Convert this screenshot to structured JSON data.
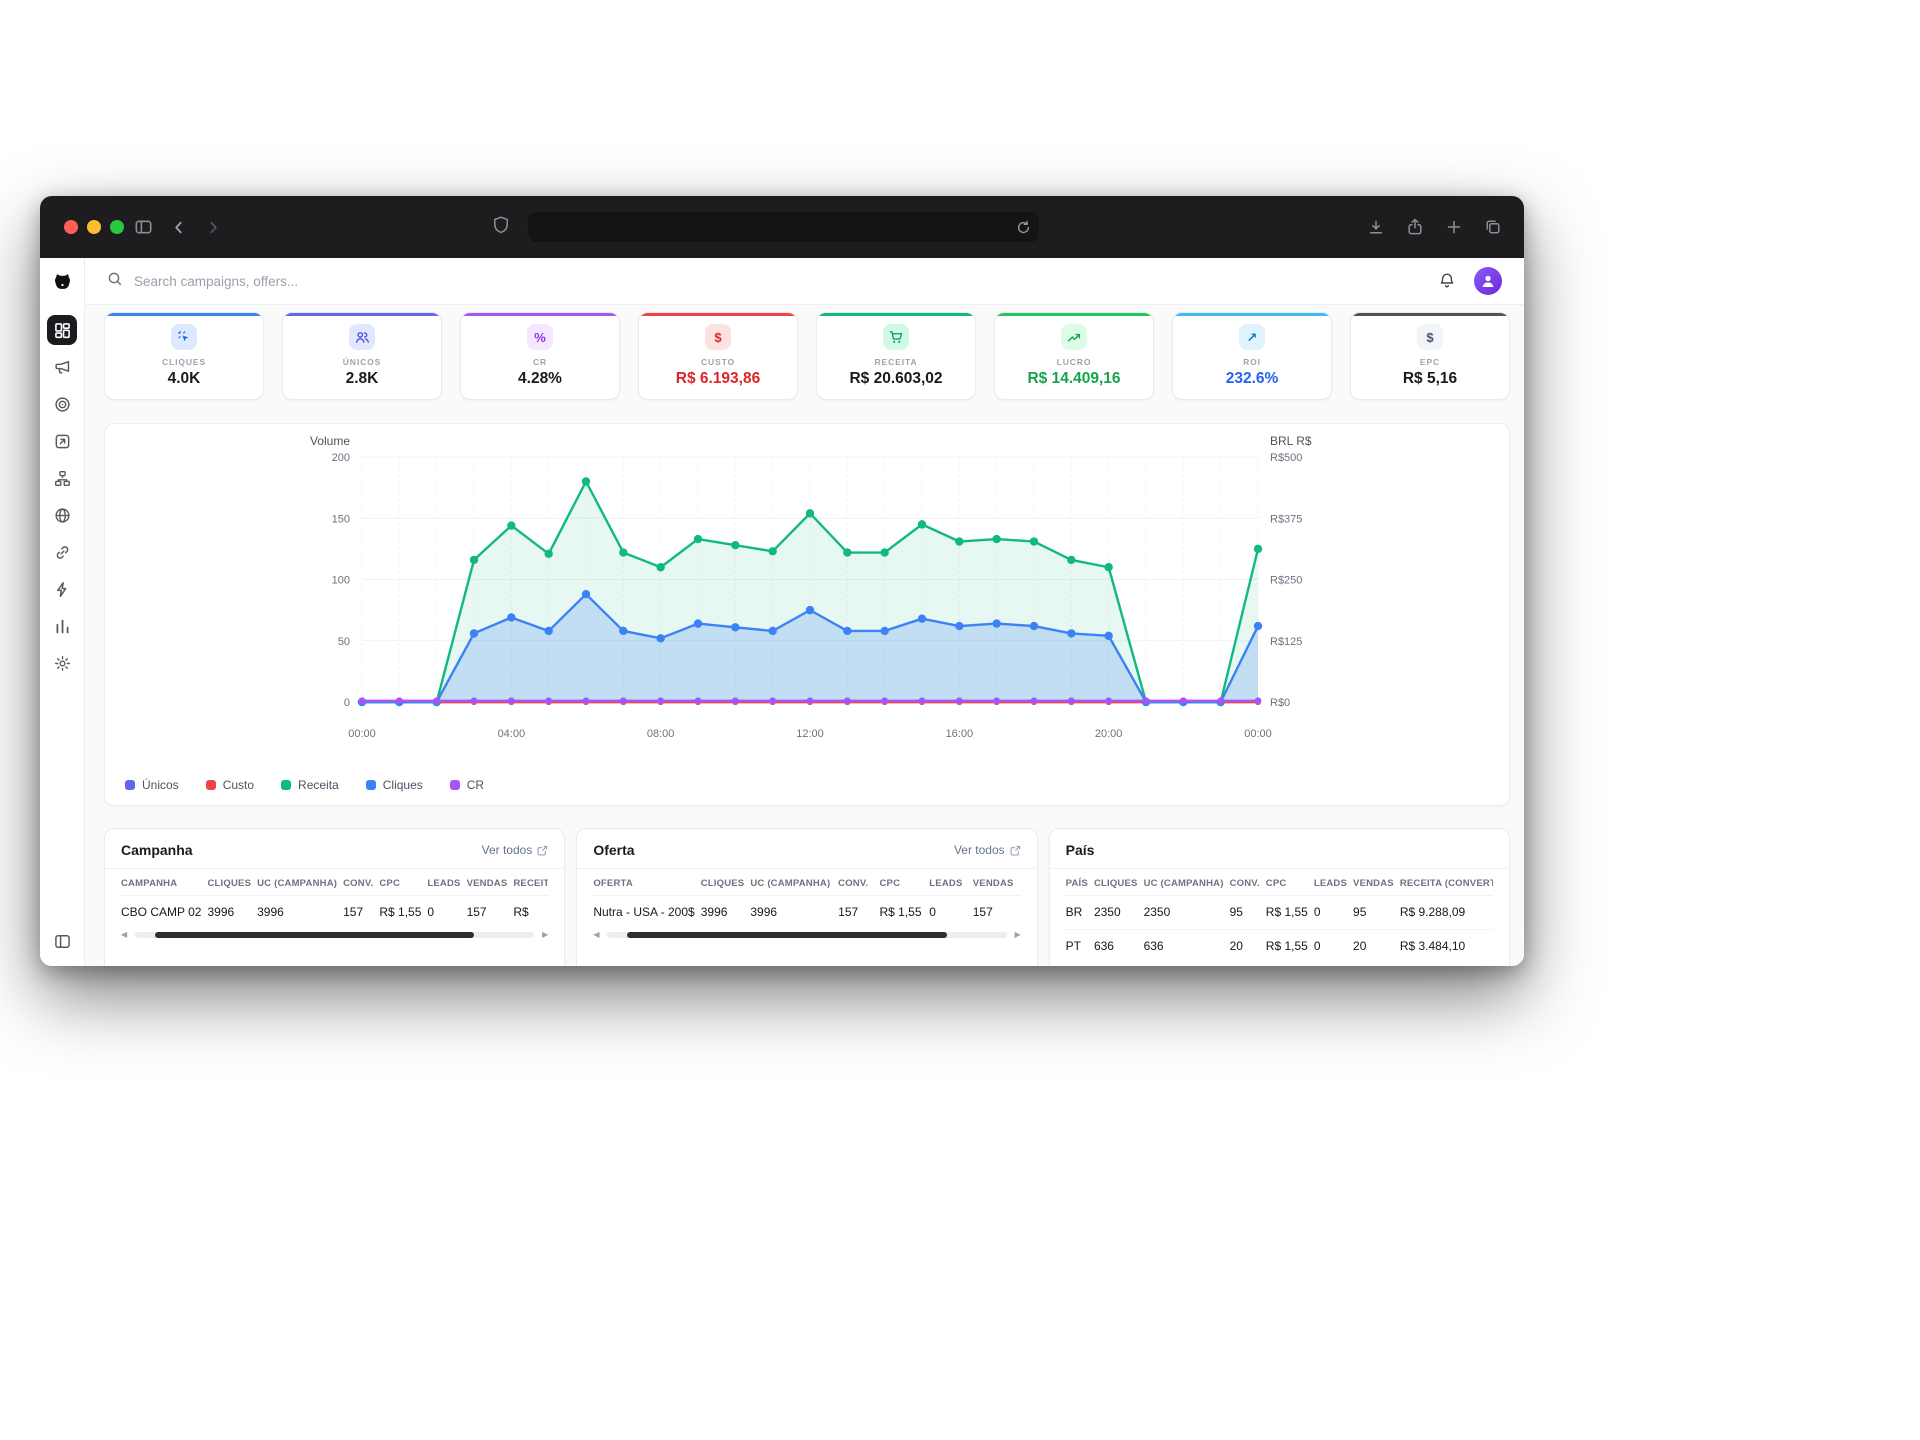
{
  "browser": {
    "url_value": "",
    "left_icons": [
      "sidebar-toggle",
      "back",
      "forward"
    ],
    "url_icons": [
      "privacy-shield",
      "reload"
    ],
    "right_icons": [
      "downloads",
      "share",
      "new-tab",
      "tab-overview"
    ]
  },
  "sidebar": {
    "logo": "dog-logo",
    "items": [
      {
        "icon": "dashboard",
        "active": true
      },
      {
        "icon": "megaphone"
      },
      {
        "icon": "target"
      },
      {
        "icon": "square-arrow"
      },
      {
        "icon": "sitemap"
      },
      {
        "icon": "globe"
      },
      {
        "icon": "link"
      },
      {
        "icon": "zap"
      },
      {
        "icon": "bar-chart"
      },
      {
        "icon": "settings"
      }
    ],
    "footer_icon": "collapse-panel"
  },
  "topbar": {
    "search_placeholder": "Search campaigns, offers...",
    "icons": [
      "search",
      "bell",
      "avatar"
    ]
  },
  "kpis": [
    {
      "label": "CLIQUES",
      "value": "4.0K",
      "icon": "cursor-click",
      "accent": "#3b82f6",
      "chip_bg": "#dbeafe",
      "chip_fg": "#2563eb",
      "value_color": "#191b20"
    },
    {
      "label": "ÚNICOS",
      "value": "2.8K",
      "icon": "users",
      "accent": "#6366f1",
      "chip_bg": "#e0e7ff",
      "chip_fg": "#4f46e5",
      "value_color": "#191b20"
    },
    {
      "label": "CR",
      "value": "4.28%",
      "icon": "percent",
      "accent": "#a855f7",
      "chip_bg": "#f3e8ff",
      "chip_fg": "#9333ea",
      "value_color": "#191b20"
    },
    {
      "label": "CUSTO",
      "value": "R$ 6.193,86",
      "icon": "dollar",
      "accent": "#ef4444",
      "chip_bg": "#fee2e2",
      "chip_fg": "#dc2626",
      "value_color": "#dc2626"
    },
    {
      "label": "RECEITA",
      "value": "R$ 20.603,02",
      "icon": "cart",
      "accent": "#10b981",
      "chip_bg": "#d1fae5",
      "chip_fg": "#059669",
      "value_color": "#191b20"
    },
    {
      "label": "LUCRO",
      "value": "R$ 14.409,16",
      "icon": "trend-up",
      "accent": "#22c55e",
      "chip_bg": "#dcfce7",
      "chip_fg": "#16a34a",
      "value_color": "#16a34a"
    },
    {
      "label": "ROI",
      "value": "232.6%",
      "icon": "arrow-up-right",
      "accent": "#38bdf8",
      "chip_bg": "#e0f2fe",
      "chip_fg": "#0284c7",
      "value_color": "#2563eb"
    },
    {
      "label": "EPC",
      "value": "R$ 5,16",
      "icon": "dollar",
      "accent": "#52525b",
      "chip_bg": "#f1f5f9",
      "chip_fg": "#475569",
      "value_color": "#191b20"
    }
  ],
  "chart_data": {
    "type": "area",
    "x": [
      "00:00",
      "01:00",
      "02:00",
      "03:00",
      "04:00",
      "05:00",
      "06:00",
      "07:00",
      "08:00",
      "09:00",
      "10:00",
      "11:00",
      "12:00",
      "13:00",
      "14:00",
      "15:00",
      "16:00",
      "17:00",
      "18:00",
      "19:00",
      "20:00",
      "21:00",
      "22:00",
      "23:00",
      "00:00"
    ],
    "x_ticks": {
      "indices": [
        0,
        4,
        8,
        12,
        16,
        20,
        24
      ],
      "labels": [
        "00:00",
        "04:00",
        "08:00",
        "12:00",
        "16:00",
        "20:00",
        "00:00"
      ]
    },
    "left_axis": {
      "label": "Volume",
      "ticks": [
        0,
        50,
        100,
        150,
        200
      ],
      "min": 0,
      "max": 200
    },
    "right_axis": {
      "label": "BRL R$",
      "tick_labels": [
        "R$0",
        "R$125",
        "R$250",
        "R$375",
        "R$500"
      ]
    },
    "grid": true,
    "legend_position": "bottom-left",
    "series": [
      {
        "name": "Únicos",
        "color": "#6366f1",
        "dot_r": 3,
        "values": [
          0,
          0,
          0,
          0,
          0,
          0,
          0,
          0,
          0,
          0,
          0,
          0,
          0,
          0,
          0,
          0,
          0,
          0,
          0,
          0,
          0,
          0,
          0,
          0,
          0
        ]
      },
      {
        "name": "Custo",
        "color": "#ef4444",
        "dot_r": 3,
        "values": [
          0,
          0,
          0,
          0,
          0,
          0,
          0,
          0,
          0,
          0,
          0,
          0,
          0,
          0,
          0,
          0,
          0,
          0,
          0,
          0,
          0,
          0,
          0,
          0,
          0
        ]
      },
      {
        "name": "Receita",
        "color": "#10b981",
        "fill": "rgba(16,185,129,0.10)",
        "dot_r": 4.2,
        "values": [
          0,
          0,
          0,
          116,
          144,
          121,
          180,
          122,
          110,
          133,
          128,
          123,
          154,
          122,
          122,
          145,
          131,
          133,
          131,
          116,
          110,
          0,
          0,
          0,
          125
        ]
      },
      {
        "name": "Cliques",
        "color": "#3b82f6",
        "fill": "rgba(59,130,246,0.22)",
        "dot_r": 4.2,
        "values": [
          0,
          0,
          0,
          56,
          69,
          58,
          88,
          58,
          52,
          64,
          61,
          58,
          75,
          58,
          58,
          68,
          62,
          64,
          62,
          56,
          54,
          0,
          0,
          0,
          62
        ]
      },
      {
        "name": "CR",
        "color": "#a855f7",
        "dot_r": 3.4,
        "values": [
          1,
          1,
          1,
          1,
          1,
          1,
          1,
          1,
          1,
          1,
          1,
          1,
          1,
          1,
          1,
          1,
          1,
          1,
          1,
          1,
          1,
          1,
          1,
          1,
          1
        ]
      }
    ]
  },
  "tables": [
    {
      "title": "Campanha",
      "link": "Ver todos",
      "columns": [
        "CAMPANHA",
        "CLIQUES",
        "UC (CAMPANHA)",
        "CONV.",
        "CPC",
        "LEADS",
        "VENDAS",
        "RECEITA"
      ],
      "rows": [
        [
          "CBO CAMP 02",
          "3996",
          "3996",
          "157",
          "R$ 1,55",
          "0",
          "157",
          "R$"
        ]
      ]
    },
    {
      "title": "Oferta",
      "link": "Ver todos",
      "columns": [
        "OFERTA",
        "CLIQUES",
        "UC (CAMPANHA)",
        "CONV.",
        "CPC",
        "LEADS",
        "VENDAS"
      ],
      "rows": [
        [
          "Nutra - USA - 200$",
          "3996",
          "3996",
          "157",
          "R$ 1,55",
          "0",
          "157"
        ]
      ]
    },
    {
      "title": "País",
      "columns": [
        "PAÍS",
        "CLIQUES",
        "UC (CAMPANHA)",
        "CONV.",
        "CPC",
        "LEADS",
        "VENDAS",
        "RECEITA (CONVERTIDA)"
      ],
      "rows": [
        [
          "BR",
          "2350",
          "2350",
          "95",
          "R$ 1,55",
          "0",
          "95",
          "R$ 9.288,09"
        ],
        [
          "PT",
          "636",
          "636",
          "20",
          "R$ 1,55",
          "0",
          "20",
          "R$ 3.484,10"
        ]
      ]
    }
  ]
}
